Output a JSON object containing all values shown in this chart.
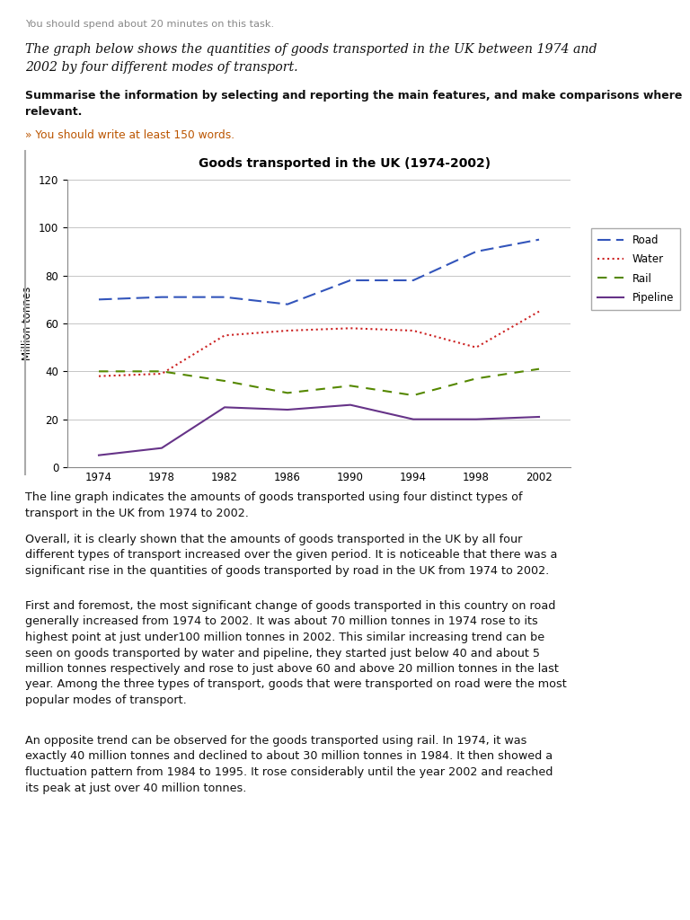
{
  "title": "Goods transported in the UK (1974-2002)",
  "chart_title_fontsize": 10,
  "ylabel": "Million tonnes",
  "years": [
    1974,
    1978,
    1982,
    1986,
    1990,
    1994,
    1998,
    2002
  ],
  "road": [
    70,
    71,
    71,
    68,
    78,
    78,
    90,
    95
  ],
  "water": [
    38,
    39,
    55,
    57,
    58,
    57,
    50,
    65
  ],
  "rail": [
    40,
    40,
    36,
    31,
    34,
    30,
    37,
    41
  ],
  "pipeline": [
    5,
    8,
    25,
    24,
    26,
    20,
    20,
    21
  ],
  "road_color": "#3355bb",
  "water_color": "#cc2222",
  "rail_color": "#558800",
  "pipeline_color": "#663388",
  "ylim": [
    0,
    120
  ],
  "yticks": [
    0,
    20,
    40,
    60,
    80,
    100,
    120
  ],
  "background_color": "#ffffff",
  "header_text": "You should spend about 20 minutes on this task.",
  "prompt_line1": "The graph below shows the quantities of goods transported in the UK between 1974 and",
  "prompt_line2": "2002 by four different modes of transport.",
  "instruction_line1": "Summarise the information by selecting and reporting the main features, and make comparisons where",
  "instruction_line2": "relevant.",
  "word_count_text": "» You should write at least 150 words.",
  "para1": "The line graph indicates the amounts of goods transported using four distinct types of\ntransport in the UK from 1974 to 2002.",
  "para2": "Overall, it is clearly shown that the amounts of goods transported in the UK by all four\ndifferent types of transport increased over the given period. It is noticeable that there was a\nsignificant rise in the quantities of goods transported by road in the UK from 1974 to 2002.",
  "para3": "First and foremost, the most significant change of goods transported in this country on road\ngenerally increased from 1974 to 2002. It was about 70 million tonnes in 1974 rose to its\nhighest point at just under100 million tonnes in 2002. This similar increasing trend can be\nseen on goods transported by water and pipeline, they started just below 40 and about 5\nmillion tonnes respectively and rose to just above 60 and above 20 million tonnes in the last\nyear. Among the three types of transport, goods that were transported on road were the most\npopular modes of transport.",
  "para4": "An opposite trend can be observed for the goods transported using rail. In 1974, it was\nexactly 40 million tonnes and declined to about 30 million tonnes in 1984. It then showed a\nfluctuation pattern from 1984 to 1995. It rose considerably until the year 2002 and reached\nits peak at just over 40 million tonnes."
}
